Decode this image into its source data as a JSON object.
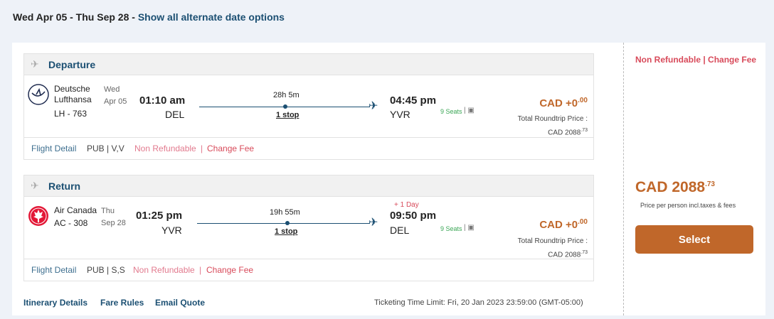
{
  "topbar": {
    "dates": "Wed Apr 05 - Thu Sep 28 - ",
    "alt_link": "Show all alternate date options"
  },
  "segments": [
    {
      "title": "Departure",
      "airline": "Deutsche Lufthansa",
      "flight_no": "LH - 763",
      "weekday": "Wed",
      "date": "Apr 05",
      "dep_time": "01:10 am",
      "dep_airport": "DEL",
      "duration": "28h 5m",
      "stops": "1 stop",
      "arr_time": "04:45 pm",
      "arr_airport": "YVR",
      "day_offset": "",
      "seats": "9 Seats",
      "price_diff": "CAD +0",
      "price_diff_cents": ".00",
      "total_label": "Total Roundtrip Price :",
      "total": "CAD 2088",
      "total_cents": ".73",
      "flight_detail": "Flight Detail",
      "class": "PUB | V,V",
      "non_refundable": "Non Refundable",
      "sep": "|",
      "change_fee": "Change Fee",
      "logo": "lufthansa-crane"
    },
    {
      "title": "Return",
      "airline": "Air Canada",
      "flight_no": "AC - 308",
      "weekday": "Thu",
      "date": "Sep 28",
      "dep_time": "01:25 pm",
      "dep_airport": "YVR",
      "duration": "19h 55m",
      "stops": "1 stop",
      "arr_time": "09:50 pm",
      "arr_airport": "DEL",
      "day_offset": "+ 1 Day",
      "seats": "9 Seats",
      "price_diff": "CAD +0",
      "price_diff_cents": ".00",
      "total_label": "Total Roundtrip Price :",
      "total": "CAD 2088",
      "total_cents": ".73",
      "flight_detail": "Flight Detail",
      "class": "PUB | S,S",
      "non_refundable": "Non Refundable",
      "sep": "|",
      "change_fee": "Change Fee",
      "logo": "air-canada-maple-leaf"
    }
  ],
  "bottom": {
    "itinerary": "Itinerary Details",
    "fare_rules": "Fare Rules",
    "email_quote": "Email Quote",
    "ticketing": "Ticketing Time Limit: Fri, 20 Jan 2023 23:59:00 (GMT-05:00)"
  },
  "summary": {
    "refund_note": "Non Refundable | Change Fee",
    "price": "CAD 2088",
    "price_cents": ".73",
    "price_note": "Price per person incl.taxes & fees",
    "select": "Select"
  },
  "colors": {
    "accent": "#c0672a",
    "link": "#1b4f72",
    "alert": "#d84a5a",
    "seats": "#3aa655"
  }
}
